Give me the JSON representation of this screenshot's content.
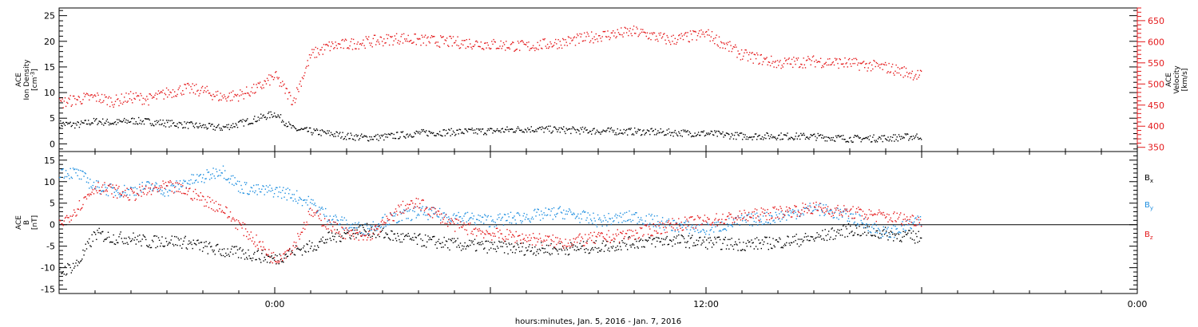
{
  "footer": {
    "caption": "hours:minutes, Jan. 5, 2016 - Jan. 7, 2016"
  },
  "colors": {
    "black": "#000000",
    "red": "#e41a1c",
    "blue": "#1f8fe0"
  },
  "chart_data": [
    {
      "type": "scatter",
      "panel": "top",
      "grid": false,
      "ylabel": {
        "line1": "ACE",
        "line2": "Ion Density",
        "unit": "[cm",
        "unit_exp": "-3",
        "unit_end": "]"
      },
      "y2label": {
        "line1": "ACE",
        "line2": "Velocity",
        "unit": "[km/s]"
      },
      "ylim": [
        -1.5,
        26.5
      ],
      "y2lim": [
        340,
        680
      ],
      "yticks": [
        "0",
        "5",
        "10",
        "15",
        "20",
        "25"
      ],
      "y2ticks": [
        "350",
        "400",
        "450",
        "500",
        "550",
        "600",
        "650"
      ],
      "series": [
        {
          "id": "density",
          "color": "black",
          "x_hours": [
            -6,
            -5.5,
            -5,
            -4.5,
            -4,
            -3.5,
            -3,
            -2.5,
            -2,
            -1.5,
            -1,
            -0.5,
            0,
            0.5,
            1,
            1.5,
            2,
            2.5,
            3,
            3.5,
            4,
            5,
            6,
            7,
            8,
            9,
            10,
            11,
            12,
            13,
            14,
            15,
            16,
            17,
            18
          ],
          "values": [
            4,
            3.8,
            4.5,
            4.2,
            4.6,
            4.4,
            4.1,
            3.8,
            3.5,
            3.2,
            4,
            5,
            6,
            3,
            2.5,
            2.1,
            1.6,
            1.3,
            1.4,
            1.8,
            2.2,
            2.4,
            2.6,
            3,
            2.8,
            2.6,
            2.5,
            2.3,
            2.1,
            1.6,
            1.6,
            1.5,
            1.1,
            1.2,
            1.6
          ]
        },
        {
          "id": "velocity",
          "color": "red",
          "x_hours": [
            -6,
            -5.5,
            -5,
            -4.5,
            -4,
            -3.5,
            -3,
            -2.5,
            -2,
            -1.5,
            -1,
            -0.5,
            0,
            0.5,
            1,
            1.5,
            2,
            2.5,
            3,
            3.5,
            4,
            5,
            6,
            7,
            8,
            9,
            10,
            11,
            12,
            13,
            14,
            15,
            16,
            17,
            18
          ],
          "values": [
            455,
            465,
            470,
            460,
            470,
            465,
            480,
            490,
            485,
            470,
            475,
            490,
            520,
            460,
            570,
            590,
            595,
            600,
            605,
            610,
            605,
            600,
            595,
            590,
            600,
            615,
            625,
            605,
            620,
            570,
            550,
            555,
            550,
            540,
            520
          ]
        }
      ]
    },
    {
      "type": "scatter",
      "panel": "bottom",
      "grid": false,
      "zero_line": true,
      "ylabel": {
        "line1": "ACE",
        "line2": "B",
        "unit": "[nT]"
      },
      "ylim": [
        -16,
        17
      ],
      "yticks": [
        "-15",
        "-10",
        "-5",
        "0",
        "5",
        "10",
        "15"
      ],
      "legend_position": "right",
      "x_range_hours": [
        -6,
        24
      ],
      "x_ticks_hours": [
        0,
        12,
        24
      ],
      "x_tick_labels": [
        "0:00",
        "12:00",
        "0:00"
      ],
      "series": [
        {
          "id": "bx",
          "name": "B",
          "subscript": "x",
          "color": "black",
          "x_hours": [
            -6,
            -5.5,
            -5,
            -4.5,
            -4,
            -3.5,
            -3,
            -2.5,
            -2,
            -1.5,
            -1,
            -0.5,
            0,
            0.5,
            1,
            1.5,
            2,
            2.5,
            3,
            3.5,
            4,
            5,
            6,
            7,
            8,
            9,
            10,
            11,
            12,
            13,
            14,
            15,
            16,
            17,
            18
          ],
          "values": [
            -11,
            -9,
            -2,
            -3,
            -3,
            -4,
            -3.5,
            -4,
            -5,
            -6,
            -6.5,
            -7,
            -8,
            -6,
            -5,
            -3,
            -2,
            -1,
            -2,
            -3,
            -3.5,
            -4.5,
            -5,
            -5.5,
            -5.5,
            -5,
            -4,
            -3.5,
            -4,
            -4.5,
            -4,
            -3,
            -1,
            -2,
            -3
          ]
        },
        {
          "id": "by",
          "name": "B",
          "subscript": "y",
          "color": "blue",
          "x_hours": [
            -6,
            -5.5,
            -5,
            -4.5,
            -4,
            -3.5,
            -3,
            -2.5,
            -2,
            -1.5,
            -1,
            -0.5,
            0,
            0.5,
            1,
            1.5,
            2,
            2.5,
            3,
            3.5,
            4,
            5,
            6,
            7,
            8,
            9,
            10,
            11,
            12,
            13,
            14,
            15,
            16,
            17,
            18
          ],
          "values": [
            12.5,
            12,
            9,
            8,
            8,
            9,
            8,
            10,
            11,
            13,
            9,
            8,
            8,
            7,
            5,
            2,
            0,
            -1,
            1,
            2,
            3,
            2,
            1,
            2,
            3,
            1,
            2,
            0,
            -1,
            1,
            2,
            4,
            2,
            -2,
            1
          ]
        },
        {
          "id": "bz",
          "name": "B",
          "subscript": "z",
          "color": "red",
          "x_hours": [
            -6,
            -5.5,
            -5,
            -4.5,
            -4,
            -3.5,
            -3,
            -2.5,
            -2,
            -1.5,
            -1,
            -0.5,
            0,
            0.5,
            1,
            1.5,
            2,
            2.5,
            3,
            3.5,
            4,
            5,
            6,
            7,
            8,
            9,
            10,
            11,
            12,
            13,
            14,
            15,
            16,
            17,
            18
          ],
          "values": [
            0,
            4,
            9,
            8,
            7,
            8,
            9,
            8,
            6,
            4,
            0,
            -4,
            -8,
            -5,
            3,
            0,
            -2,
            -3,
            0,
            4,
            5,
            0,
            -2,
            -3,
            -4,
            -3,
            -2,
            0,
            1,
            2,
            3,
            4,
            3,
            2,
            1
          ]
        }
      ]
    }
  ]
}
